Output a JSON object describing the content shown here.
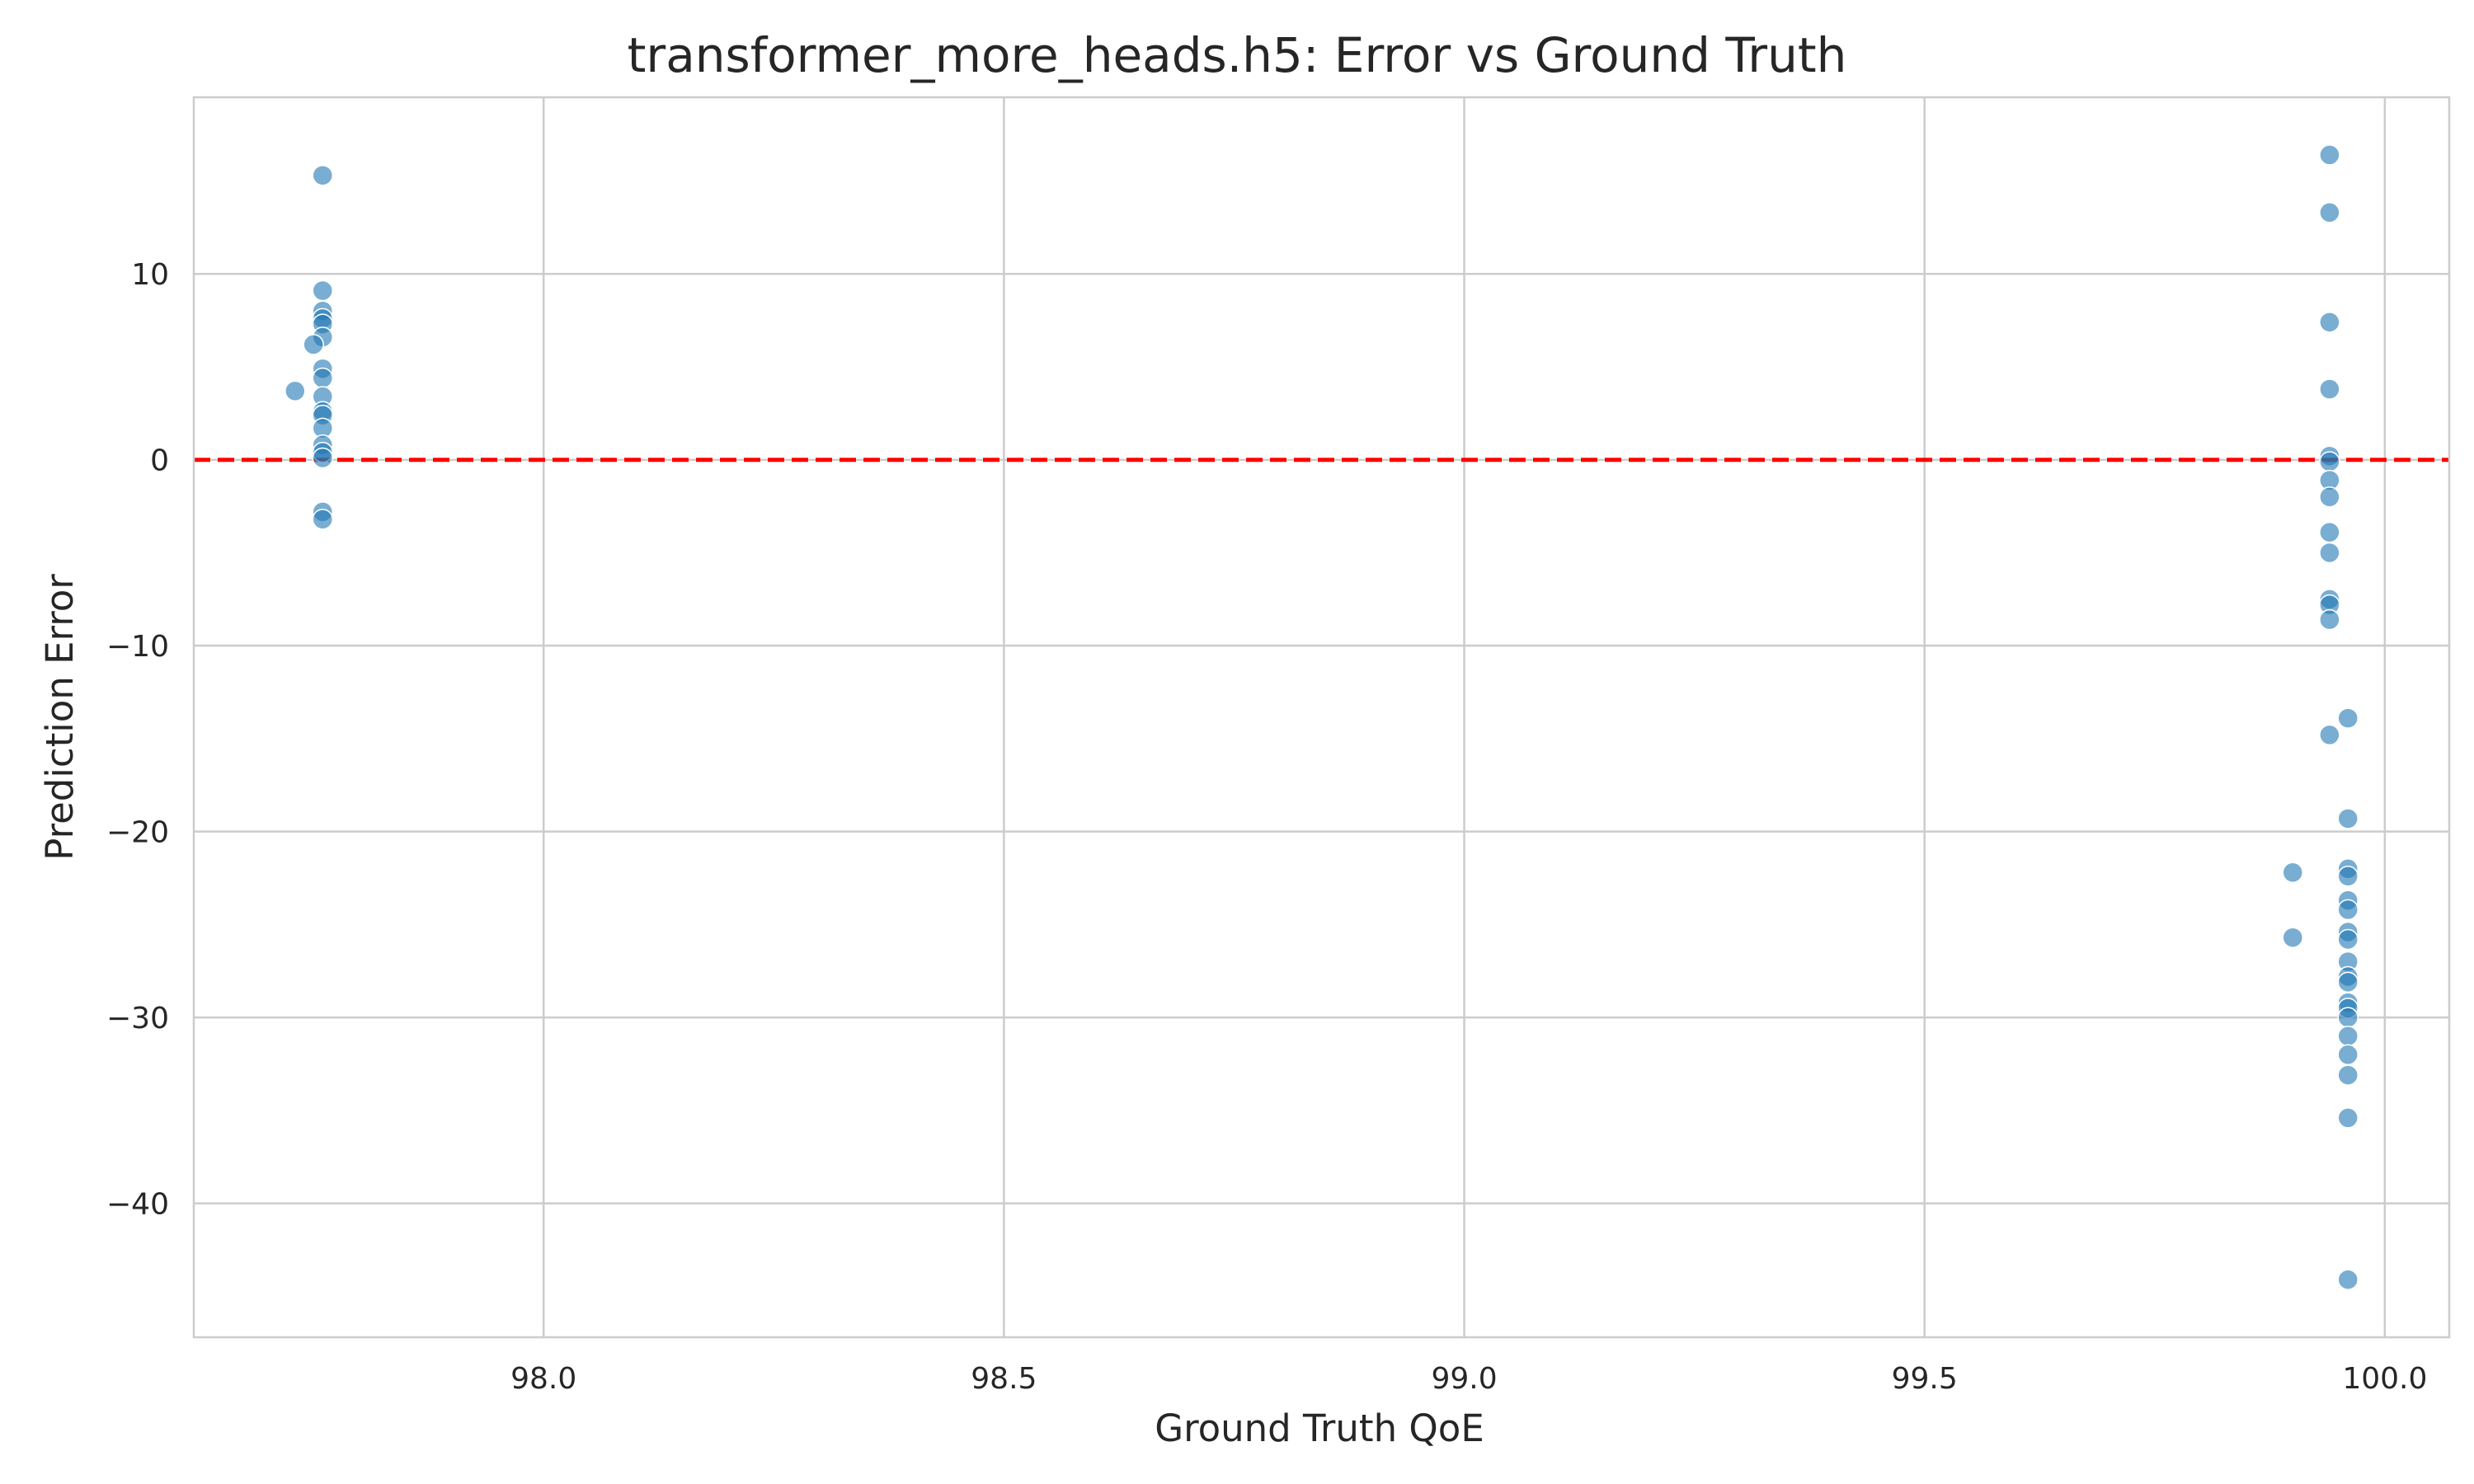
{
  "chart_data": {
    "type": "scatter",
    "title": "transformer_more_heads.h5: Error vs Ground Truth",
    "xlabel": "Ground Truth QoE",
    "ylabel": "Prediction Error",
    "xlim": [
      97.62,
      100.07
    ],
    "ylim": [
      -47.2,
      19.5
    ],
    "xticks": [
      98.0,
      98.5,
      99.0,
      99.5,
      100.0
    ],
    "xtick_labels": [
      "98.0",
      "98.5",
      "99.0",
      "99.5",
      "100.0"
    ],
    "yticks": [
      10,
      0,
      -10,
      -20,
      -30,
      -40
    ],
    "ytick_labels": [
      "10",
      "0",
      "−10",
      "−20",
      "−30",
      "−40"
    ],
    "grid": true,
    "point_color": "#1f77b4",
    "reference_line": {
      "y": 0,
      "color": "#ff0000",
      "style": "dashed"
    },
    "points": [
      {
        "x": 97.76,
        "y": 15.3
      },
      {
        "x": 97.76,
        "y": 9.1
      },
      {
        "x": 97.76,
        "y": 8.0
      },
      {
        "x": 97.76,
        "y": 7.6
      },
      {
        "x": 97.76,
        "y": 7.3
      },
      {
        "x": 97.76,
        "y": 6.6
      },
      {
        "x": 97.75,
        "y": 6.2
      },
      {
        "x": 97.76,
        "y": 4.9
      },
      {
        "x": 97.76,
        "y": 4.4
      },
      {
        "x": 97.73,
        "y": 3.7
      },
      {
        "x": 97.76,
        "y": 3.4
      },
      {
        "x": 97.76,
        "y": 2.6
      },
      {
        "x": 97.76,
        "y": 2.4
      },
      {
        "x": 97.76,
        "y": 1.7
      },
      {
        "x": 97.76,
        "y": 0.8
      },
      {
        "x": 97.76,
        "y": 0.4
      },
      {
        "x": 97.76,
        "y": 0.1
      },
      {
        "x": 97.76,
        "y": -2.8
      },
      {
        "x": 97.76,
        "y": -3.2
      },
      {
        "x": 99.94,
        "y": 16.4
      },
      {
        "x": 99.94,
        "y": 13.3
      },
      {
        "x": 99.94,
        "y": 7.4
      },
      {
        "x": 99.94,
        "y": 3.8
      },
      {
        "x": 99.94,
        "y": 0.2
      },
      {
        "x": 99.94,
        "y": -0.1
      },
      {
        "x": 99.94,
        "y": -1.1
      },
      {
        "x": 99.94,
        "y": -2.0
      },
      {
        "x": 99.94,
        "y": -3.9
      },
      {
        "x": 99.94,
        "y": -5.0
      },
      {
        "x": 99.94,
        "y": -7.5
      },
      {
        "x": 99.94,
        "y": -7.8
      },
      {
        "x": 99.94,
        "y": -8.6
      },
      {
        "x": 99.94,
        "y": -14.8
      },
      {
        "x": 99.96,
        "y": -13.9
      },
      {
        "x": 99.96,
        "y": -19.3
      },
      {
        "x": 99.96,
        "y": -22.0
      },
      {
        "x": 99.96,
        "y": -22.4
      },
      {
        "x": 99.9,
        "y": -22.2
      },
      {
        "x": 99.96,
        "y": -23.7
      },
      {
        "x": 99.96,
        "y": -24.2
      },
      {
        "x": 99.96,
        "y": -25.4
      },
      {
        "x": 99.96,
        "y": -25.8
      },
      {
        "x": 99.9,
        "y": -25.7
      },
      {
        "x": 99.96,
        "y": -27.0
      },
      {
        "x": 99.96,
        "y": -27.8
      },
      {
        "x": 99.96,
        "y": -28.1
      },
      {
        "x": 99.96,
        "y": -29.2
      },
      {
        "x": 99.96,
        "y": -29.5
      },
      {
        "x": 99.96,
        "y": -30.0
      },
      {
        "x": 99.96,
        "y": -31.0
      },
      {
        "x": 99.96,
        "y": -32.0
      },
      {
        "x": 99.96,
        "y": -33.1
      },
      {
        "x": 99.96,
        "y": -35.4
      },
      {
        "x": 99.96,
        "y": -44.1
      }
    ]
  }
}
